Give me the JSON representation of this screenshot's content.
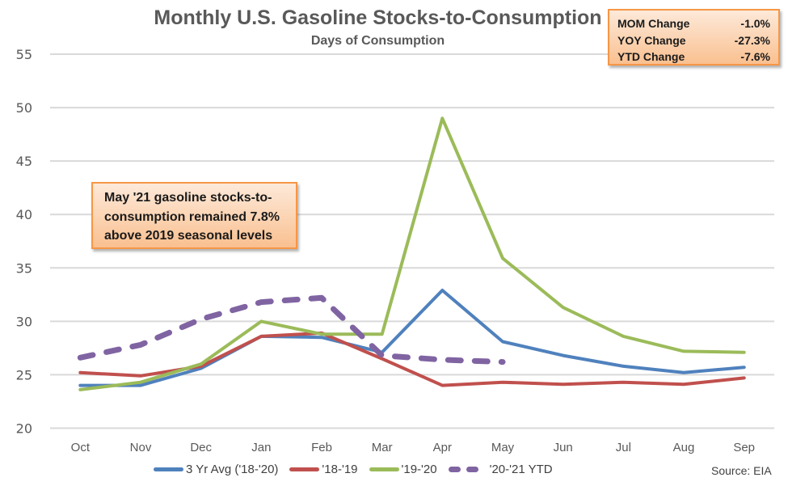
{
  "chart_data": {
    "type": "line",
    "title": "Monthly U.S. Gasoline Stocks-to-Consumption",
    "subtitle": "Days of Consumption",
    "xlabel": "",
    "ylabel": "",
    "ylim": [
      20,
      55
    ],
    "yticks": [
      20,
      25,
      30,
      35,
      40,
      45,
      50,
      55
    ],
    "ytick_labels": [
      "20",
      "25",
      "30",
      "35",
      "40",
      "45",
      "50",
      "55"
    ],
    "grid": true,
    "legend_position": "bottom",
    "categories": [
      "Oct",
      "Nov",
      "Dec",
      "Jan",
      "Feb",
      "Mar",
      "Apr",
      "May",
      "Jun",
      "Jul",
      "Aug",
      "Sep"
    ],
    "series": [
      {
        "name": "3 Yr Avg ('18-'20)",
        "color": "#4f81bd",
        "style": "solid",
        "values": [
          24.0,
          24.0,
          25.6,
          28.6,
          28.5,
          27.1,
          32.9,
          28.1,
          26.8,
          25.8,
          25.2,
          25.7
        ]
      },
      {
        "name": "'18-'19",
        "color": "#c0504d",
        "style": "solid",
        "values": [
          25.2,
          24.9,
          25.8,
          28.6,
          28.9,
          26.5,
          24.0,
          24.3,
          24.1,
          24.3,
          24.1,
          24.7
        ]
      },
      {
        "name": "'19-'20",
        "color": "#9bbb59",
        "style": "solid",
        "values": [
          23.6,
          24.3,
          26.0,
          30.0,
          28.8,
          28.8,
          49.0,
          35.9,
          31.3,
          28.6,
          27.2,
          27.1
        ]
      },
      {
        "name": "'20-'21 YTD",
        "color": "#8064a2",
        "style": "dashed",
        "values": [
          26.6,
          27.8,
          30.2,
          31.8,
          32.2,
          26.8,
          26.4,
          26.2,
          null,
          null,
          null,
          null
        ]
      }
    ],
    "annotations": {
      "stats": [
        {
          "label": "MOM Change",
          "value": "-1.0%"
        },
        {
          "label": "YOY Change",
          "value": "-27.3%"
        },
        {
          "label": "YTD Change",
          "value": "-7.6%"
        }
      ],
      "note": "May '21 gasoline stocks-to-consumption remained 7.8% above 2019 seasonal levels",
      "source": "Source: EIA"
    }
  },
  "note_lines": [
    "May '21 gasoline stocks-to-",
    "consumption remained 7.8%",
    "above 2019 seasonal levels"
  ]
}
